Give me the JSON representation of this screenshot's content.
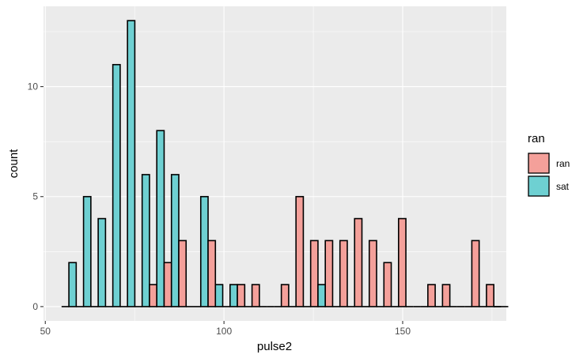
{
  "chart_data": {
    "type": "bar",
    "subtype": "histogram-dodged",
    "xlabel": "pulse2",
    "ylabel": "count",
    "xlim": [
      49.5,
      179
    ],
    "ylim": [
      -0.65,
      13.65
    ],
    "x_ticks": [
      50,
      100,
      150
    ],
    "y_ticks": [
      0,
      5,
      10
    ],
    "grid": true,
    "legend": {
      "title": "ran",
      "position": "right"
    },
    "bin_width": 4.1,
    "series": [
      {
        "name": "ran",
        "color": "#F8766D",
        "fill": "#F4A09A",
        "values": [
          0,
          0,
          0,
          0,
          0,
          0,
          1,
          2,
          3,
          0,
          3,
          0,
          1,
          1,
          0,
          1,
          5,
          3,
          3,
          3,
          4,
          3,
          2,
          4,
          0,
          1,
          1,
          0,
          3,
          1,
          0
        ]
      },
      {
        "name": "sat",
        "color": "#00BFC4",
        "fill": "#6ED0D2",
        "values": [
          2,
          5,
          4,
          11,
          13,
          6,
          8,
          6,
          0,
          5,
          1,
          1,
          0,
          0,
          0,
          0,
          0,
          1,
          0,
          0,
          0,
          0,
          0,
          0,
          0,
          0,
          0,
          0,
          0,
          0,
          0
        ]
      }
    ],
    "bin_centers": [
      56.6,
      60.7,
      64.8,
      68.9,
      73.0,
      77.1,
      81.2,
      85.3,
      89.4,
      93.5,
      97.6,
      101.7,
      105.8,
      109.9,
      114.0,
      118.1,
      122.2,
      126.3,
      130.4,
      134.5,
      138.6,
      142.7,
      146.8,
      150.9,
      155.0,
      159.1,
      163.2,
      167.3,
      171.4,
      175.5,
      177.5
    ]
  }
}
